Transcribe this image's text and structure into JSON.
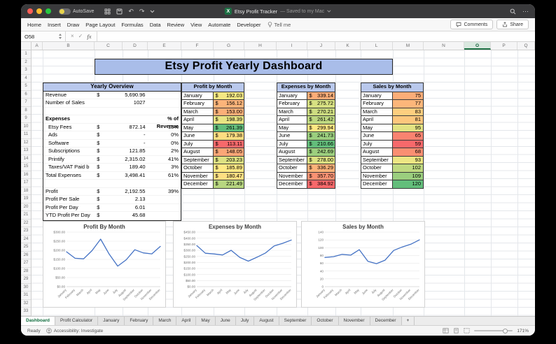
{
  "window": {
    "titlebar": {
      "autosave_label": "AutoSave",
      "doc_title": "Etsy Profit Tracker",
      "doc_status": "— Saved to my Mac"
    },
    "ribbon": {
      "tabs": [
        "Home",
        "Insert",
        "Draw",
        "Page Layout",
        "Formulas",
        "Data",
        "Review",
        "View",
        "Automate",
        "Developer"
      ],
      "tell_me_label": "Tell me",
      "comments_label": "Comments",
      "share_label": "Share"
    },
    "formula_bar": {
      "name_box": "O58",
      "fx_label": "fx"
    }
  },
  "icons": {
    "undo": "↶",
    "redo": "↷",
    "more": "⋯",
    "cancel": "×",
    "enter": "✓"
  },
  "grid": {
    "columns": [
      "A",
      "B",
      "C",
      "D",
      "E",
      "F",
      "G",
      "H",
      "I",
      "J",
      "K",
      "L",
      "M",
      "N",
      "O",
      "P",
      "Q"
    ],
    "selected_column": "O",
    "row_count": 33
  },
  "dashboard": {
    "title": "Etsy Profit Yearly Dashboard",
    "months": [
      "January",
      "February",
      "March",
      "April",
      "May",
      "June",
      "July",
      "August",
      "September",
      "October",
      "November",
      "December"
    ],
    "yearly_overview": {
      "header": "Yearly Overview",
      "rows": [
        {
          "label": "Revenue",
          "currency": "$",
          "value": "5,690.96"
        },
        {
          "label": "Number of Sales",
          "value": "1027"
        },
        {},
        {
          "label": "Expenses",
          "bold": true,
          "note": "% of Revenue"
        },
        {
          "label": "Etsy Fees",
          "indent": true,
          "currency": "$",
          "value": "872.14",
          "pct": "15%"
        },
        {
          "label": "Ads",
          "indent": true,
          "currency": "$",
          "value": "-",
          "pct": "0%"
        },
        {
          "label": "Software",
          "indent": true,
          "currency": "$",
          "value": "-",
          "pct": "0%"
        },
        {
          "label": "Subscriptions",
          "indent": true,
          "currency": "$",
          "value": "121.85",
          "pct": "2%"
        },
        {
          "label": "Printify",
          "indent": true,
          "currency": "$",
          "value": "2,315.02",
          "pct": "41%"
        },
        {
          "label": "Taxes/VAT Paid b",
          "indent": true,
          "currency": "$",
          "value": "189.40",
          "pct": "3%"
        },
        {
          "label": "Total Expenses",
          "currency": "$",
          "value": "3,498.41",
          "pct": "61%"
        },
        {},
        {
          "label": "Profit",
          "currency": "$",
          "value": "2,192.55",
          "pct": "39%"
        },
        {
          "label": "Profit Per Sale",
          "currency": "$",
          "value": "2.13"
        },
        {
          "label": "Profit Per Day",
          "currency": "$",
          "value": "6.01"
        },
        {
          "label": "YTD Profit Per Day",
          "currency": "$",
          "value": "45.68"
        }
      ]
    },
    "monthly_tables": [
      {
        "header": "Profit by Month",
        "currency": "$",
        "values": [
          "192.03",
          "156.12",
          "153.00",
          "198.39",
          "261.39",
          "179.38",
          "113.11",
          "148.05",
          "203.23",
          "185.89",
          "180.47",
          "221.49"
        ],
        "fills": [
          "#F5E883",
          "#FCB47A",
          "#FCAF78",
          "#E8E483",
          "#63BE7B",
          "#FEDD81",
          "#F8696B",
          "#FBA677",
          "#DDE182",
          "#FFE984",
          "#FEDF82",
          "#B7D680"
        ]
      },
      {
        "header": "Expenses by Month",
        "currency": "$",
        "values": [
          "339.14",
          "275.72",
          "270.21",
          "261.42",
          "299.94",
          "241.73",
          "210.66",
          "242.69",
          "278.00",
          "336.29",
          "357.70",
          "384.92"
        ],
        "fills": [
          "#FCAD78",
          "#D7E082",
          "#CEDD81",
          "#BED880",
          "#FFE883",
          "#9BCE7E",
          "#63BE7B",
          "#9CCF7E",
          "#DCE182",
          "#FCB279",
          "#FA9273",
          "#F8696B"
        ]
      },
      {
        "header": "Sales by Month",
        "values": [
          "75",
          "77",
          "83",
          "81",
          "95",
          "65",
          "59",
          "68",
          "93",
          "102",
          "109",
          "120"
        ],
        "fills": [
          "#FCAD78",
          "#FCB67A",
          "#FECF7F",
          "#FDC77D",
          "#E3E382",
          "#F98370",
          "#F8696B",
          "#FA8F72",
          "#EDE683",
          "#BFD980",
          "#9BCE7E",
          "#63BE7B"
        ]
      }
    ]
  },
  "chart_data": [
    {
      "type": "line",
      "title": "Profit By Month",
      "x": [
        "January",
        "February",
        "March",
        "April",
        "May",
        "June",
        "July",
        "August",
        "September",
        "October",
        "November",
        "December"
      ],
      "values": [
        192.03,
        156.12,
        153.0,
        198.39,
        261.39,
        179.38,
        113.11,
        148.05,
        203.23,
        185.89,
        180.47,
        221.49
      ],
      "ylim": [
        0,
        300
      ],
      "yticks": [
        "$300.00",
        "$250.00",
        "$200.00",
        "$150.00",
        "$100.00",
        "$50.00",
        "$0.00"
      ],
      "line_color": "#4472C4",
      "grid": true,
      "legend": "none"
    },
    {
      "type": "line",
      "title": "Expenses by Month",
      "x": [
        "January",
        "February",
        "March",
        "April",
        "May",
        "June",
        "July",
        "August",
        "September",
        "October",
        "November",
        "December"
      ],
      "values": [
        339.14,
        275.72,
        270.21,
        261.42,
        299.94,
        241.73,
        210.66,
        242.69,
        278.0,
        336.29,
        357.7,
        384.92
      ],
      "ylim": [
        0,
        450
      ],
      "yticks": [
        "$450.00",
        "$400.00",
        "$350.00",
        "$300.00",
        "$250.00",
        "$200.00",
        "$150.00",
        "$100.00",
        "$50.00",
        "$0.00"
      ],
      "line_color": "#4472C4",
      "grid": true,
      "legend": "none"
    },
    {
      "type": "line",
      "title": "Sales by Month",
      "x": [
        "January",
        "February",
        "March",
        "April",
        "May",
        "June",
        "July",
        "August",
        "September",
        "October",
        "November",
        "December"
      ],
      "values": [
        75,
        77,
        83,
        81,
        95,
        65,
        59,
        68,
        93,
        102,
        109,
        120
      ],
      "ylim": [
        0,
        140
      ],
      "yticks": [
        "140",
        "120",
        "100",
        "80",
        "60",
        "40",
        "20",
        "0"
      ],
      "line_color": "#4472C4",
      "grid": true,
      "legend": "none"
    }
  ],
  "sheet_tabs": {
    "tabs": [
      "Dashboard",
      "Profit Calculator",
      "January",
      "February",
      "March",
      "April",
      "May",
      "June",
      "July",
      "August",
      "September",
      "October",
      "November",
      "December"
    ],
    "active_tab": "Dashboard",
    "add_tab_label": "+"
  },
  "status_bar": {
    "ready_label": "Ready",
    "accessibility_label": "Accessibility: Investigate",
    "zoom_level": "171%"
  }
}
